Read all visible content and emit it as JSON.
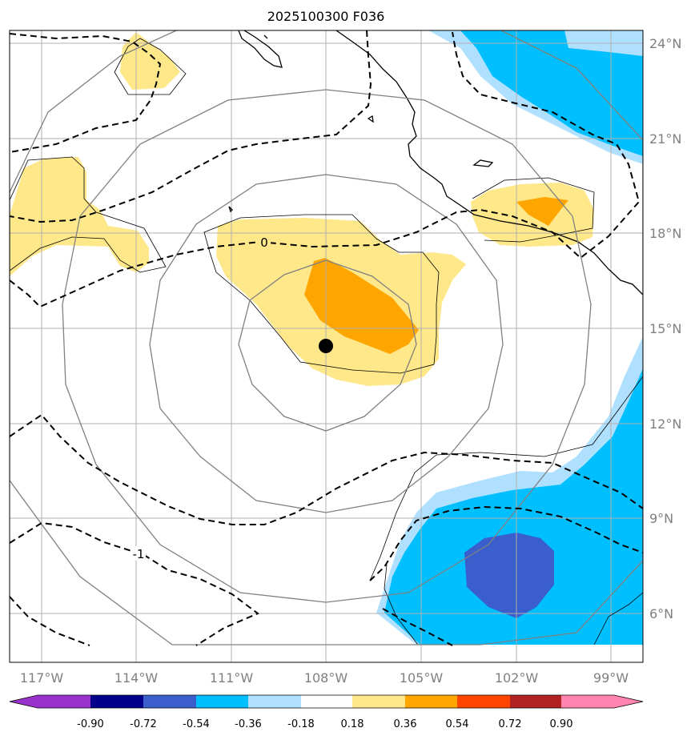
{
  "chart_data": {
    "type": "map-contour",
    "title": "2025100300 F036",
    "lon_ticks": [
      "117°W",
      "114°W",
      "111°W",
      "108°W",
      "105°W",
      "102°W",
      "99°W"
    ],
    "lon_values": [
      -117,
      -114,
      -111,
      -108,
      -105,
      -102,
      -99
    ],
    "lat_ticks": [
      "24°N",
      "21°N",
      "18°N",
      "15°N",
      "12°N",
      "9°N",
      "6°N"
    ],
    "lat_values": [
      24,
      21,
      18,
      15,
      12,
      9,
      6
    ],
    "extent": {
      "lon": [
        -118,
        -98
      ],
      "lat": [
        4.5,
        24.4
      ]
    },
    "center": {
      "lon": -108.0,
      "lat": 14.4
    },
    "range_ring_radii_deg": [
      2.75,
      5.5,
      8.25
    ],
    "colorbar": {
      "levels": [
        "-0.90",
        "-0.72",
        "-0.54",
        "-0.36",
        "-0.18",
        "0.18",
        "0.36",
        "0.54",
        "0.72",
        "0.90"
      ],
      "colors": [
        "#6a0dad",
        "#00008b",
        "#3a5fcd",
        "#00bfff",
        "#b0e0ff",
        "#ffffff",
        "#ffe88a",
        "#ffa500",
        "#ff4500",
        "#b22222",
        "#ff85b0"
      ]
    },
    "contour_labels": [
      "0",
      "-1"
    ],
    "fill_colors": {
      "light_yellow": "#ffe88a",
      "orange": "#ffa500",
      "light_blue": "#b0e0ff",
      "blue": "#00bfff",
      "dark_blue": "#3a5fcd"
    }
  }
}
